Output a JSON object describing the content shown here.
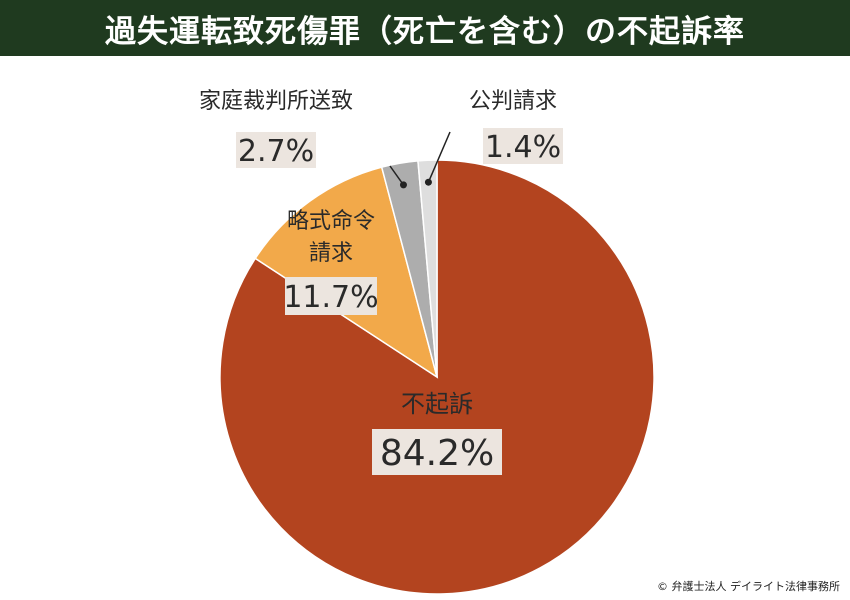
{
  "title": "過失運転致死傷罪（死亡を含む）の不起訴率",
  "credit": "© 弁護士法人 デイライト法律事務所",
  "colors": {
    "title_bg": "#1f3a1f",
    "label_box": "#ece5df"
  },
  "chart_data": {
    "type": "pie",
    "title": "過失運転致死傷罪（死亡を含む）の不起訴率",
    "slices": [
      {
        "label": "不起訴",
        "value": 84.2,
        "value_label": "84.2%",
        "color": "#b3441f"
      },
      {
        "label": "略式命令請求",
        "value": 11.7,
        "value_label": "11.7%",
        "color": "#f2a94a"
      },
      {
        "label": "家庭裁判所送致",
        "value": 2.7,
        "value_label": "2.7%",
        "color": "#adadad"
      },
      {
        "label": "公判請求",
        "value": 1.4,
        "value_label": "1.4%",
        "color": "#dedede"
      }
    ]
  }
}
